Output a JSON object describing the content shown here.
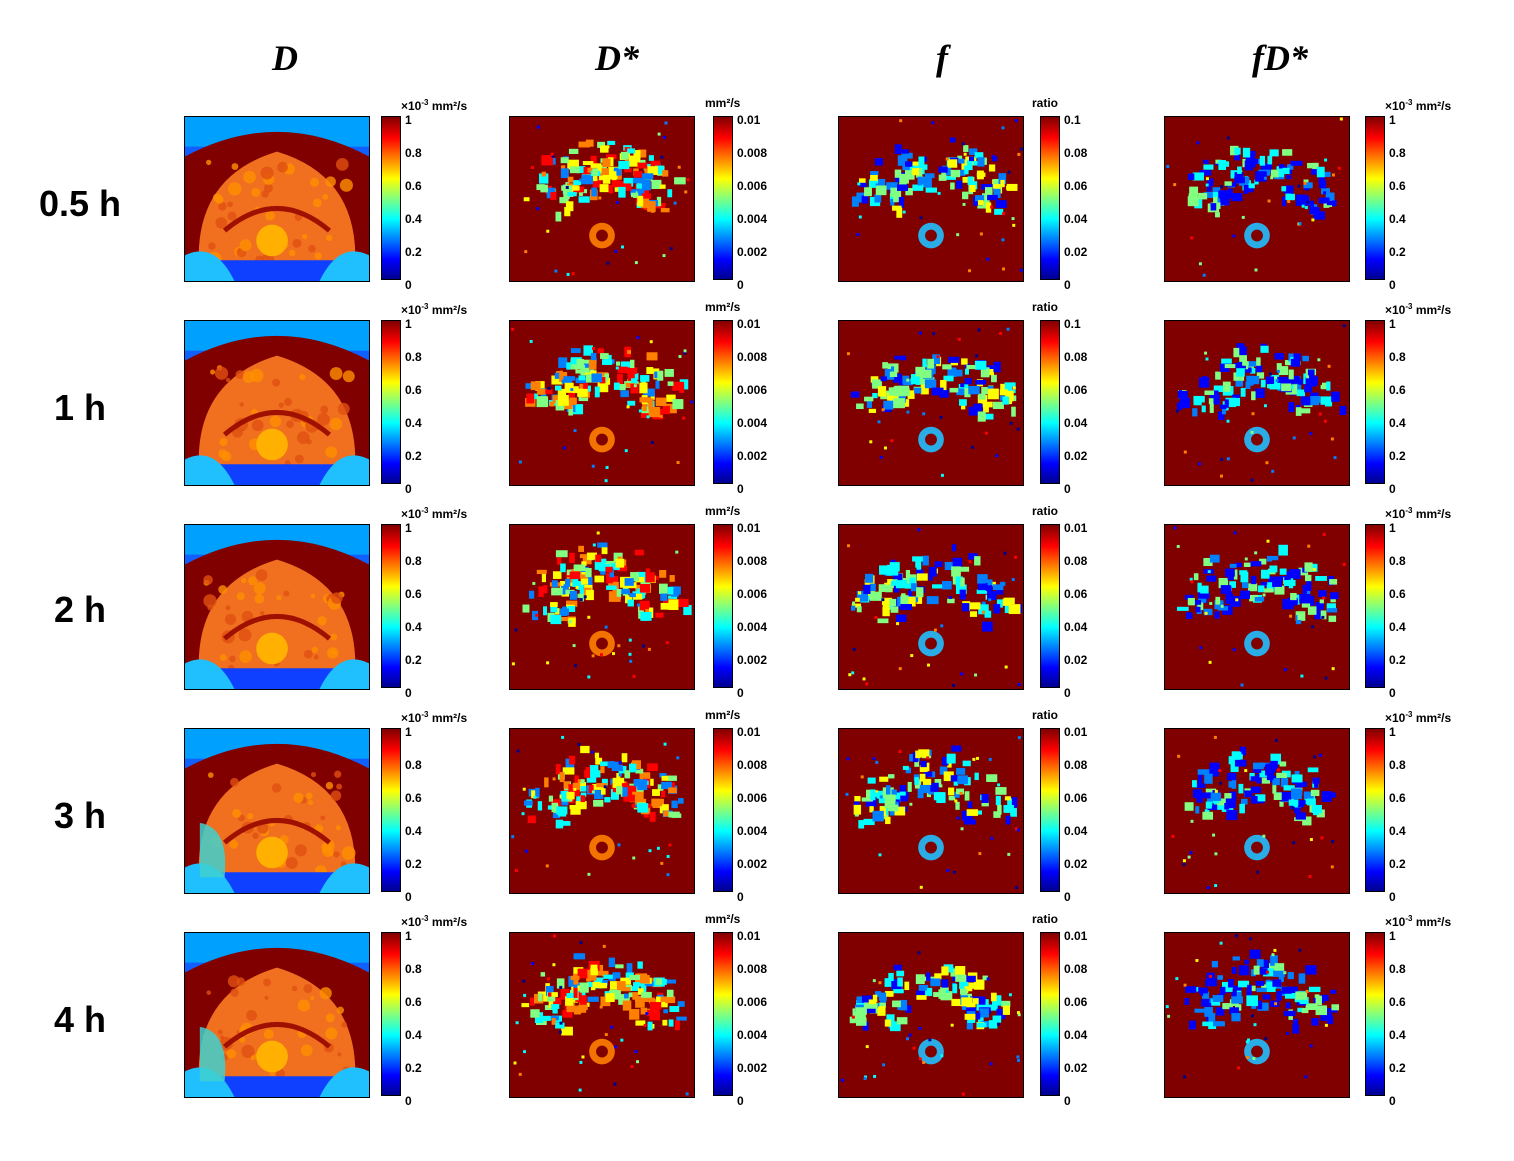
{
  "columns": [
    {
      "key": "D",
      "title": "D",
      "unit_prefix": "×10",
      "unit_exp": "-3",
      "unit_suffix": " mm²/s",
      "ticks": [
        "1",
        "0.8",
        "0.6",
        "0.4",
        "0.2",
        "0"
      ]
    },
    {
      "key": "Dstar",
      "title": "D*",
      "unit_prefix": "",
      "unit_exp": "",
      "unit_suffix": "mm²/s",
      "ticks": [
        "0.01",
        "0.008",
        "0.006",
        "0.004",
        "0.002",
        "0"
      ]
    },
    {
      "key": "f",
      "title": "f",
      "unit_prefix": "",
      "unit_exp": "",
      "unit_suffix": "ratio",
      "ticks": [
        "0.1",
        "0.08",
        "0.06",
        "0.04",
        "0.02",
        "0"
      ]
    },
    {
      "key": "fDstar",
      "title": "fD*",
      "unit_prefix": "×10",
      "unit_exp": "-3",
      "unit_suffix": " mm²/s",
      "ticks": [
        "1",
        "0.8",
        "0.6",
        "0.4",
        "0.2",
        "0"
      ]
    }
  ],
  "f_ticks_later_rows": [
    "0.01",
    "0.08",
    "0.06",
    "0.04",
    "0.02",
    "0"
  ],
  "rows": [
    {
      "label": "0.5 h"
    },
    {
      "label": "1 h"
    },
    {
      "label": "2 h"
    },
    {
      "label": "3 h"
    },
    {
      "label": "4 h"
    }
  ],
  "colormap": "jet",
  "colors": {
    "dark_red": "#800000",
    "blue": "#0000ff",
    "cyan": "#00ffff",
    "yellow": "#ffff00",
    "red": "#ff0000",
    "dark_blue": "#00008f"
  }
}
